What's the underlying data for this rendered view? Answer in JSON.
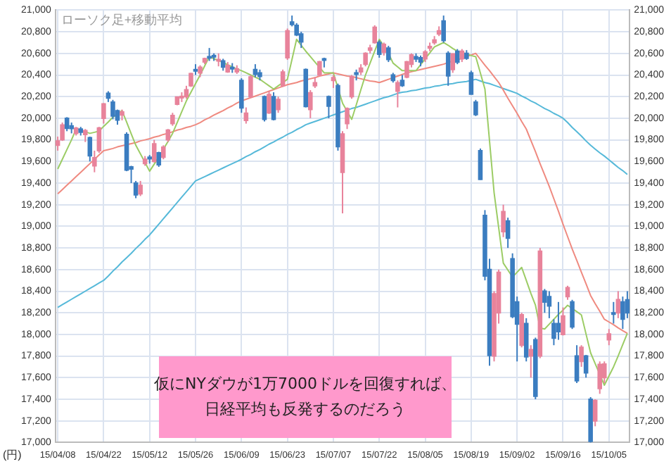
{
  "chart_data": {
    "type": "candlestick",
    "title": "ローソク足+移動平均",
    "ylabel": "(円)",
    "categories": [
      "15/04/08",
      null,
      null,
      null,
      null,
      null,
      null,
      null,
      null,
      null,
      "15/04/22",
      null,
      null,
      null,
      null,
      null,
      null,
      null,
      null,
      null,
      "15/05/12",
      null,
      null,
      null,
      null,
      null,
      null,
      null,
      null,
      null,
      "15/05/26",
      null,
      null,
      null,
      null,
      null,
      null,
      null,
      null,
      null,
      "15/06/09",
      null,
      null,
      null,
      null,
      null,
      null,
      null,
      null,
      null,
      "15/06/23",
      null,
      null,
      null,
      null,
      null,
      null,
      null,
      null,
      null,
      "15/07/07",
      null,
      null,
      null,
      null,
      null,
      null,
      null,
      null,
      null,
      "15/07/22",
      null,
      null,
      null,
      null,
      null,
      null,
      null,
      null,
      null,
      "15/08/05",
      null,
      null,
      null,
      null,
      null,
      null,
      null,
      null,
      null,
      "15/08/19",
      null,
      null,
      null,
      null,
      null,
      null,
      null,
      null,
      null,
      "15/09/02",
      null,
      null,
      null,
      null,
      null,
      null,
      null,
      null,
      null,
      "15/09/16",
      null,
      null,
      null,
      null,
      null,
      null,
      null,
      null,
      null,
      "15/10/05",
      null,
      null,
      null,
      null
    ],
    "ohlc": [
      [
        19750,
        19830,
        19700,
        19790
      ],
      [
        19800,
        19960,
        19790,
        19937
      ],
      [
        20000,
        20010,
        19880,
        19907
      ],
      [
        19930,
        19960,
        19860,
        19905
      ],
      [
        19860,
        19920,
        19840,
        19908
      ],
      [
        19900,
        19920,
        19840,
        19870
      ],
      [
        19850,
        19900,
        19780,
        19885
      ],
      [
        19820,
        19830,
        19600,
        19652
      ],
      [
        19560,
        19700,
        19500,
        19634
      ],
      [
        19700,
        19920,
        19680,
        19909
      ],
      [
        20000,
        20140,
        19950,
        20133
      ],
      [
        20230,
        20250,
        20150,
        20187
      ],
      [
        20150,
        20170,
        19990,
        20020
      ],
      [
        20070,
        20080,
        19940,
        19983
      ],
      [
        20030,
        20080,
        19980,
        20058
      ],
      [
        19850,
        19870,
        19510,
        19520
      ],
      [
        19550,
        19560,
        19400,
        19531
      ],
      [
        19400,
        19420,
        19260,
        19291
      ],
      [
        19300,
        19420,
        19280,
        19379
      ],
      [
        19580,
        19650,
        19560,
        19620
      ],
      [
        19640,
        19660,
        19580,
        19624
      ],
      [
        19600,
        19800,
        19590,
        19764
      ],
      [
        19680,
        19690,
        19550,
        19570
      ],
      [
        19640,
        19750,
        19620,
        19732
      ],
      [
        19800,
        19900,
        19780,
        19890
      ],
      [
        19950,
        20050,
        19930,
        20026
      ],
      [
        20130,
        20200,
        20120,
        20196
      ],
      [
        20200,
        20240,
        20150,
        20202
      ],
      [
        20200,
        20300,
        20180,
        20264
      ],
      [
        20300,
        20420,
        20290,
        20413
      ],
      [
        20450,
        20500,
        20400,
        20437
      ],
      [
        20420,
        20490,
        20380,
        20472
      ],
      [
        20520,
        20560,
        20500,
        20551
      ],
      [
        20570,
        20650,
        20530,
        20563
      ],
      [
        20580,
        20600,
        20530,
        20569
      ],
      [
        20540,
        20600,
        20480,
        20543
      ],
      [
        20530,
        20550,
        20440,
        20473
      ],
      [
        20430,
        20520,
        20420,
        20488
      ],
      [
        20470,
        20510,
        20420,
        20460
      ],
      [
        20430,
        20490,
        20410,
        20457
      ],
      [
        20350,
        20370,
        20050,
        20096
      ],
      [
        19980,
        20100,
        19950,
        20046
      ],
      [
        20200,
        20400,
        20190,
        20382
      ],
      [
        20450,
        20500,
        20380,
        20407
      ],
      [
        20420,
        20450,
        20350,
        20387
      ],
      [
        20200,
        20210,
        19970,
        19990
      ],
      [
        20050,
        20250,
        20040,
        20219
      ],
      [
        20200,
        20240,
        19980,
        19990
      ],
      [
        20080,
        20200,
        20050,
        20174
      ],
      [
        20300,
        20450,
        20290,
        20428
      ],
      [
        20560,
        20830,
        20540,
        20809
      ],
      [
        20890,
        20950,
        20850,
        20868
      ],
      [
        20860,
        20880,
        20760,
        20771
      ],
      [
        20780,
        20800,
        20650,
        20706
      ],
      [
        20450,
        20460,
        20100,
        20109
      ],
      [
        20080,
        20260,
        20000,
        20235
      ],
      [
        20300,
        20380,
        20280,
        20329
      ],
      [
        20400,
        20530,
        20390,
        20522
      ],
      [
        20550,
        20560,
        20470,
        20539
      ],
      [
        20200,
        20210,
        20000,
        20112
      ],
      [
        20350,
        20400,
        20280,
        20376
      ],
      [
        20300,
        20320,
        19700,
        19737
      ],
      [
        19500,
        19880,
        19120,
        19855
      ],
      [
        19950,
        20100,
        19900,
        20089
      ],
      [
        20200,
        20400,
        20180,
        20385
      ],
      [
        20420,
        20450,
        20350,
        20410
      ],
      [
        20430,
        20500,
        20400,
        20463
      ],
      [
        20500,
        20610,
        20480,
        20600
      ],
      [
        20630,
        20680,
        20600,
        20650
      ],
      [
        20700,
        20860,
        20690,
        20841
      ],
      [
        20700,
        20720,
        20560,
        20593
      ],
      [
        20610,
        20700,
        20580,
        20683
      ],
      [
        20650,
        20670,
        20520,
        20544
      ],
      [
        20400,
        20420,
        20330,
        20350
      ],
      [
        20250,
        20350,
        20100,
        20328
      ],
      [
        20350,
        20400,
        20290,
        20302
      ],
      [
        20380,
        20530,
        20370,
        20522
      ],
      [
        20500,
        20600,
        20470,
        20585
      ],
      [
        20570,
        20600,
        20520,
        20548
      ],
      [
        20560,
        20580,
        20480,
        20520
      ],
      [
        20550,
        20630,
        20520,
        20614
      ],
      [
        20650,
        20700,
        20620,
        20664
      ],
      [
        20700,
        20760,
        20680,
        20724
      ],
      [
        20780,
        20850,
        20760,
        20808
      ],
      [
        20900,
        20950,
        20700,
        20720
      ],
      [
        20600,
        20620,
        20300,
        20392
      ],
      [
        20450,
        20600,
        20420,
        20595
      ],
      [
        20620,
        20640,
        20500,
        20519
      ],
      [
        20550,
        20640,
        20520,
        20620
      ],
      [
        20600,
        20630,
        20540,
        20554
      ],
      [
        20420,
        20440,
        20220,
        20222
      ],
      [
        20150,
        20170,
        20020,
        20033
      ],
      [
        19700,
        19720,
        19430,
        19435
      ],
      [
        19100,
        19150,
        18500,
        18540
      ],
      [
        18600,
        18700,
        17710,
        17806
      ],
      [
        17800,
        18400,
        17750,
        18376
      ],
      [
        18200,
        18600,
        18100,
        18574
      ],
      [
        18950,
        19200,
        18900,
        19136
      ],
      [
        19050,
        19080,
        18800,
        18890
      ],
      [
        18700,
        18750,
        18150,
        18165
      ],
      [
        18300,
        18350,
        17750,
        18095
      ],
      [
        17900,
        18200,
        17880,
        18182
      ],
      [
        18100,
        18150,
        17750,
        17792
      ],
      [
        17800,
        17900,
        17600,
        17860
      ],
      [
        17950,
        17970,
        17400,
        17427
      ],
      [
        17800,
        18800,
        17780,
        18770
      ],
      [
        18400,
        18420,
        18200,
        18299
      ],
      [
        18350,
        18400,
        18150,
        18264
      ],
      [
        18100,
        18140,
        17900,
        17965
      ],
      [
        18100,
        18300,
        17950,
        18026
      ],
      [
        18000,
        18250,
        17990,
        18171
      ],
      [
        18350,
        18450,
        18320,
        18432
      ],
      [
        18300,
        18320,
        18050,
        18070
      ],
      [
        17800,
        17900,
        17550,
        17571
      ],
      [
        17750,
        17900,
        17700,
        17880
      ],
      [
        17800,
        17810,
        17600,
        17645
      ],
      [
        17400,
        17420,
        17000,
        17010
      ],
      [
        17200,
        17400,
        17150,
        17388
      ],
      [
        17500,
        17750,
        17450,
        17722
      ],
      [
        17600,
        17750,
        17550,
        17725
      ],
      [
        17950,
        18050,
        17900,
        18005
      ],
      [
        18200,
        18300,
        18100,
        18186
      ],
      [
        18200,
        18400,
        18150,
        18322
      ],
      [
        18300,
        18350,
        18050,
        18141
      ],
      [
        18320,
        18400,
        18150,
        18200
      ]
    ],
    "colors": [
      "#e8839b",
      "#e8839b",
      "#3b7dc0",
      "#3b7dc0",
      "#e8839b",
      "#3b7dc0",
      "#e8839b",
      "#3b7dc0",
      "#e8839b",
      "#e8839b",
      "#e8839b",
      "#3b7dc0",
      "#3b7dc0",
      "#3b7dc0",
      "#e8839b",
      "#3b7dc0",
      "#3b7dc0",
      "#3b7dc0",
      "#e8839b",
      "#e8839b",
      "#3b7dc0",
      "#e8839b",
      "#3b7dc0",
      "#e8839b",
      "#e8839b",
      "#e8839b",
      "#e8839b",
      "#e8839b",
      "#e8839b",
      "#e8839b",
      "#3b7dc0",
      "#e8839b",
      "#e8839b",
      "#3b7dc0",
      "#3b7dc0",
      "#e8839b",
      "#3b7dc0",
      "#e8839b",
      "#3b7dc0",
      "#e8839b",
      "#3b7dc0",
      "#e8839b",
      "#e8839b",
      "#3b7dc0",
      "#3b7dc0",
      "#3b7dc0",
      "#e8839b",
      "#3b7dc0",
      "#e8839b",
      "#e8839b",
      "#e8839b",
      "#3b7dc0",
      "#3b7dc0",
      "#3b7dc0",
      "#3b7dc0",
      "#e8839b",
      "#e8839b",
      "#e8839b",
      "#3b7dc0",
      "#3b7dc0",
      "#e8839b",
      "#3b7dc0",
      "#e8839b",
      "#e8839b",
      "#e8839b",
      "#3b7dc0",
      "#e8839b",
      "#e8839b",
      "#e8839b",
      "#e8839b",
      "#3b7dc0",
      "#e8839b",
      "#3b7dc0",
      "#3b7dc0",
      "#e8839b",
      "#3b7dc0",
      "#e8839b",
      "#e8839b",
      "#3b7dc0",
      "#3b7dc0",
      "#e8839b",
      "#e8839b",
      "#e8839b",
      "#e8839b",
      "#3b7dc0",
      "#3b7dc0",
      "#e8839b",
      "#3b7dc0",
      "#e8839b",
      "#3b7dc0",
      "#3b7dc0",
      "#3b7dc0",
      "#3b7dc0",
      "#3b7dc0",
      "#3b7dc0",
      "#e8839b",
      "#e8839b",
      "#e8839b",
      "#3b7dc0",
      "#3b7dc0",
      "#3b7dc0",
      "#e8839b",
      "#3b7dc0",
      "#e8839b",
      "#3b7dc0",
      "#e8839b",
      "#3b7dc0",
      "#3b7dc0",
      "#3b7dc0",
      "#3b7dc0",
      "#e8839b",
      "#e8839b",
      "#3b7dc0",
      "#3b7dc0",
      "#e8839b",
      "#3b7dc0",
      "#3b7dc0",
      "#e8839b",
      "#e8839b",
      "#e8839b",
      "#e8839b",
      "#3b7dc0",
      "#e8839b",
      "#3b7dc0",
      "#3b7dc0"
    ],
    "series": [
      {
        "type": "line",
        "color": "#9ccc65",
        "values": [
          19530,
          19620,
          19710,
          19800,
          19900,
          19890,
          19875,
          19860,
          19870,
          19880,
          19925,
          19965,
          20010,
          20040,
          20070,
          19965,
          19855,
          19750,
          19670,
          19590,
          19510,
          19575,
          19640,
          19715,
          19785,
          19860,
          19960,
          20060,
          20160,
          20240,
          20320,
          20400,
          20485,
          20570,
          20550,
          20535,
          20515,
          20495,
          20475,
          20455,
          20440,
          20420,
          20400,
          20380,
          20360,
          20330,
          20300,
          20270,
          20300,
          20330,
          20360,
          20545,
          20730,
          20675,
          20620,
          20570,
          20520,
          20470,
          20420,
          20420,
          20420,
          20280,
          20140,
          20065,
          19990,
          20125,
          20265,
          20400,
          20510,
          20620,
          20730,
          20665,
          20600,
          20510,
          20475,
          20440,
          20440,
          20440,
          20440,
          20495,
          20550,
          20605,
          20660,
          20680,
          20700,
          20675,
          20645,
          20620,
          20605,
          20595,
          20580,
          20570,
          20420,
          20270,
          19790,
          19310,
          18985,
          18660,
          18595,
          18530,
          18575,
          18620,
          18500,
          18380,
          18270,
          18060,
          18050,
          18095,
          18140,
          18185,
          18225,
          18270,
          18240,
          18210,
          18180,
          18005,
          17830,
          17730,
          17630,
          17530,
          17615,
          17700,
          17800,
          17905,
          18010
        ]
      },
      {
        "type": "line",
        "color": "#ef8a80",
        "values": [
          19300,
          19340,
          19380,
          19420,
          19460,
          19500,
          19540,
          19580,
          19620,
          19660,
          19700,
          19710,
          19720,
          19735,
          19745,
          19755,
          19765,
          19775,
          19790,
          19800,
          19810,
          19825,
          19835,
          19850,
          19860,
          19875,
          19890,
          19900,
          19915,
          19925,
          19940,
          19960,
          19985,
          20005,
          20030,
          20050,
          20070,
          20095,
          20115,
          20140,
          20160,
          20175,
          20190,
          20205,
          20220,
          20235,
          20250,
          20265,
          20280,
          20295,
          20310,
          20320,
          20330,
          20345,
          20355,
          20365,
          20375,
          20390,
          20400,
          20410,
          20420,
          20410,
          20400,
          20390,
          20385,
          20375,
          20365,
          20355,
          20345,
          20340,
          20330,
          20345,
          20360,
          20375,
          20390,
          20405,
          20420,
          20430,
          20440,
          20450,
          20460,
          20470,
          20480,
          20490,
          20500,
          20515,
          20530,
          20540,
          20555,
          20570,
          20585,
          20600,
          20545,
          20490,
          20440,
          20385,
          20330,
          20260,
          20185,
          20115,
          20045,
          19970,
          19900,
          19795,
          19690,
          19580,
          19475,
          19370,
          19255,
          19140,
          19020,
          18905,
          18790,
          18685,
          18575,
          18470,
          18360,
          18285,
          18215,
          18140,
          18115,
          18090,
          18060,
          18035,
          18010
        ]
      },
      {
        "type": "line",
        "color": "#56b9d9",
        "values": [
          18250,
          18275,
          18300,
          18325,
          18350,
          18375,
          18400,
          18425,
          18450,
          18475,
          18500,
          18540,
          18585,
          18625,
          18670,
          18710,
          18750,
          18795,
          18835,
          18880,
          18920,
          18970,
          19020,
          19070,
          19120,
          19170,
          19220,
          19270,
          19320,
          19370,
          19420,
          19440,
          19460,
          19480,
          19500,
          19520,
          19540,
          19560,
          19580,
          19600,
          19620,
          19645,
          19665,
          19690,
          19710,
          19735,
          19760,
          19780,
          19805,
          19825,
          19850,
          19870,
          19895,
          19915,
          19940,
          19955,
          19970,
          19985,
          20000,
          20015,
          20030,
          20045,
          20060,
          20075,
          20090,
          20100,
          20115,
          20130,
          20145,
          20160,
          20175,
          20190,
          20200,
          20215,
          20230,
          20240,
          20245,
          20255,
          20260,
          20270,
          20280,
          20285,
          20295,
          20300,
          20310,
          20315,
          20320,
          20330,
          20335,
          20340,
          20350,
          20360,
          20345,
          20330,
          20320,
          20305,
          20290,
          20275,
          20260,
          20245,
          20230,
          20205,
          20185,
          20160,
          20140,
          20115,
          20090,
          20070,
          20045,
          20025,
          20000,
          19960,
          19915,
          19875,
          19835,
          19790,
          19750,
          19715,
          19680,
          19650,
          19615,
          19580,
          19545,
          19515,
          19480
        ]
      }
    ],
    "ylim": [
      17000,
      21000
    ],
    "yticks": [
      {
        "value": 17000,
        "label": "17,000"
      },
      {
        "value": 17200,
        "label": "17,200"
      },
      {
        "value": 17400,
        "label": "17,400"
      },
      {
        "value": 17600,
        "label": "17,600"
      },
      {
        "value": 17800,
        "label": "17,800"
      },
      {
        "value": 18000,
        "label": "18,000"
      },
      {
        "value": 18200,
        "label": "18,200"
      },
      {
        "value": 18400,
        "label": "18,400"
      },
      {
        "value": 18600,
        "label": "18,600"
      },
      {
        "value": 18800,
        "label": "18,800"
      },
      {
        "value": 19000,
        "label": "19,000"
      },
      {
        "value": 19200,
        "label": "19,200"
      },
      {
        "value": 19400,
        "label": "19,400"
      },
      {
        "value": 19600,
        "label": "19,600"
      },
      {
        "value": 19800,
        "label": "19,800"
      },
      {
        "value": 20000,
        "label": "20,000"
      },
      {
        "value": 20200,
        "label": "20,200"
      },
      {
        "value": 20400,
        "label": "20,400"
      },
      {
        "value": 20600,
        "label": "20,600"
      },
      {
        "value": 20800,
        "label": "20,800"
      },
      {
        "value": 21000,
        "label": "21,000"
      }
    ],
    "y2lim": [
      17000,
      21000
    ],
    "y2ticks": [
      {
        "value": 17000,
        "label": "17,000"
      },
      {
        "value": 17200,
        "label": "17,200"
      },
      {
        "value": 17400,
        "label": "17,400"
      },
      {
        "value": 17600,
        "label": "17,600"
      },
      {
        "value": 17800,
        "label": "17,800"
      },
      {
        "value": 18000,
        "label": "18,000"
      },
      {
        "value": 18200,
        "label": "18,200"
      },
      {
        "value": 18400,
        "label": "18,400"
      },
      {
        "value": 18600,
        "label": "18,600"
      },
      {
        "value": 18800,
        "label": "18,800"
      },
      {
        "value": 19000,
        "label": "19,000"
      },
      {
        "value": 19200,
        "label": "19,200"
      },
      {
        "value": 19400,
        "label": "19,400"
      },
      {
        "value": 19600,
        "label": "19,600"
      },
      {
        "value": 19800,
        "label": "19,800"
      },
      {
        "value": 20000,
        "label": "20,000"
      },
      {
        "value": 20200,
        "label": "20,200"
      },
      {
        "value": 20400,
        "label": "20,400"
      },
      {
        "value": 20600,
        "label": "20,600"
      },
      {
        "value": 20800,
        "label": "20,800"
      },
      {
        "value": 21000,
        "label": "21,000"
      }
    ],
    "grid": true,
    "marker": "none",
    "annotations": [
      "仮にNYダウが1万7000ドルを回復すれば、",
      "日経平均も反発するのだろう"
    ]
  }
}
